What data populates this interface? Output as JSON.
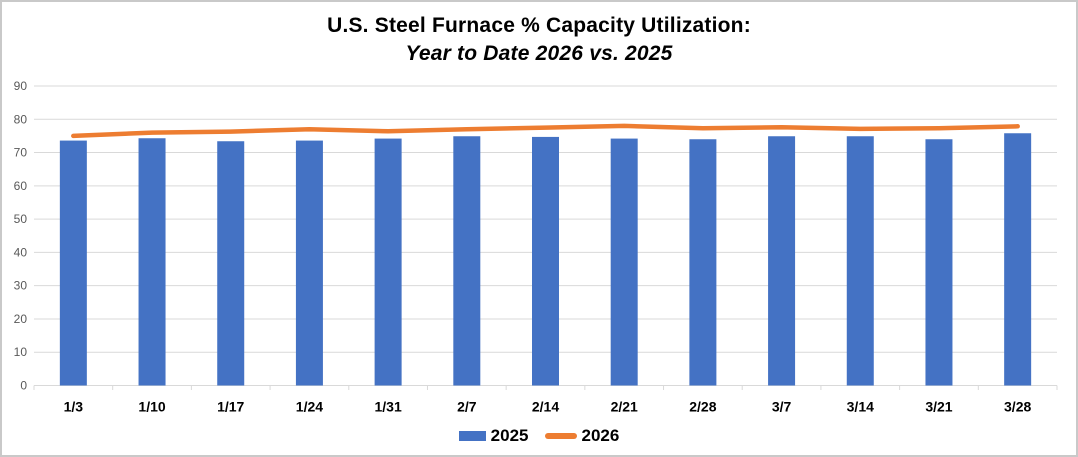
{
  "chart_data": {
    "type": "bar",
    "title": "U.S. Steel Furnace % Capacity Utilization:",
    "subtitle": "Year to Date 2026 vs. 2025",
    "categories": [
      "1/3",
      "1/10",
      "1/17",
      "1/24",
      "1/31",
      "2/7",
      "2/14",
      "2/21",
      "2/28",
      "3/7",
      "3/14",
      "3/21",
      "3/28"
    ],
    "series": [
      {
        "name": "2025",
        "type": "bar",
        "color": "#4472C4",
        "values": [
          73.6,
          74.3,
          73.4,
          73.6,
          74.2,
          74.9,
          74.7,
          74.2,
          74.0,
          74.9,
          74.9,
          74.0,
          75.8
        ]
      },
      {
        "name": "2026",
        "type": "line",
        "color": "#ED7D31",
        "values": [
          75.0,
          76.0,
          76.3,
          77.0,
          76.4,
          77.0,
          77.5,
          78.0,
          77.3,
          77.6,
          77.1,
          77.3,
          77.9
        ]
      }
    ],
    "xlabel": "",
    "ylabel": "",
    "ylim": [
      0,
      90
    ],
    "yticks": [
      0,
      10,
      20,
      30,
      40,
      50,
      60,
      70,
      80,
      90
    ],
    "grid": true,
    "legend_position": "bottom",
    "colors": {
      "bar": "#4472C4",
      "line": "#ED7D31",
      "gridline": "#D9D9D9",
      "axis_line": "#D9D9D9",
      "y_label": "#595959",
      "x_label": "#000000",
      "title": "#000000",
      "background": "#FFFFFF",
      "border": "#C9C9C9"
    }
  }
}
